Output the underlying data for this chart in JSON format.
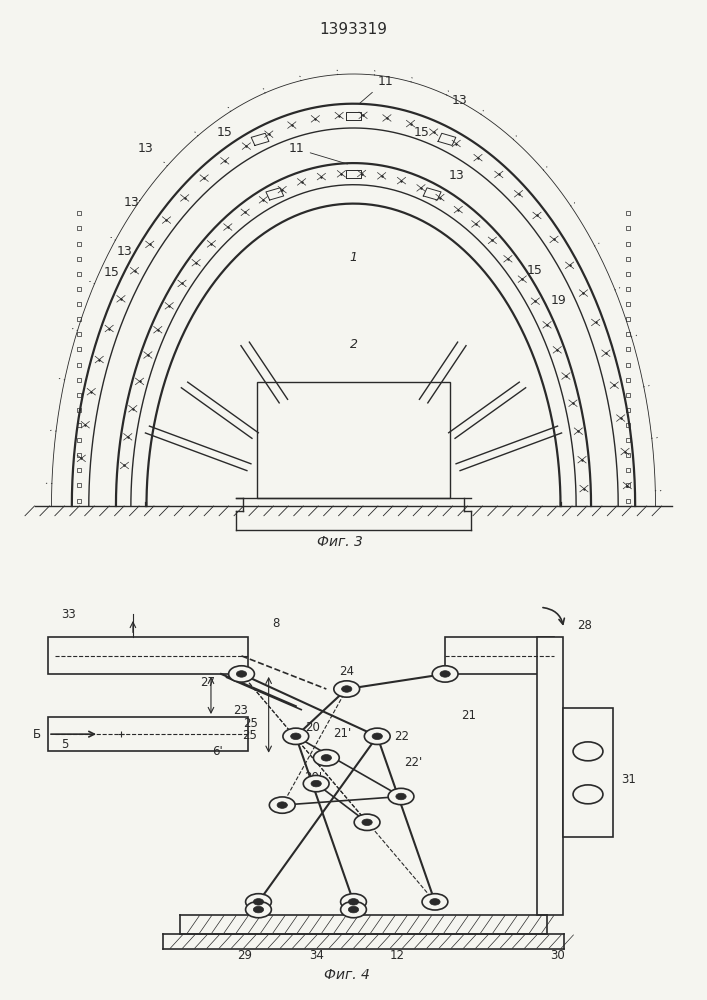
{
  "title": "1393319",
  "fig3_caption": "Фиг. 3",
  "fig4_caption": "Фиг. 4",
  "bg_color": "#f5f5f0",
  "line_color": "#2a2a2a",
  "label_color": "#2a2a2a"
}
